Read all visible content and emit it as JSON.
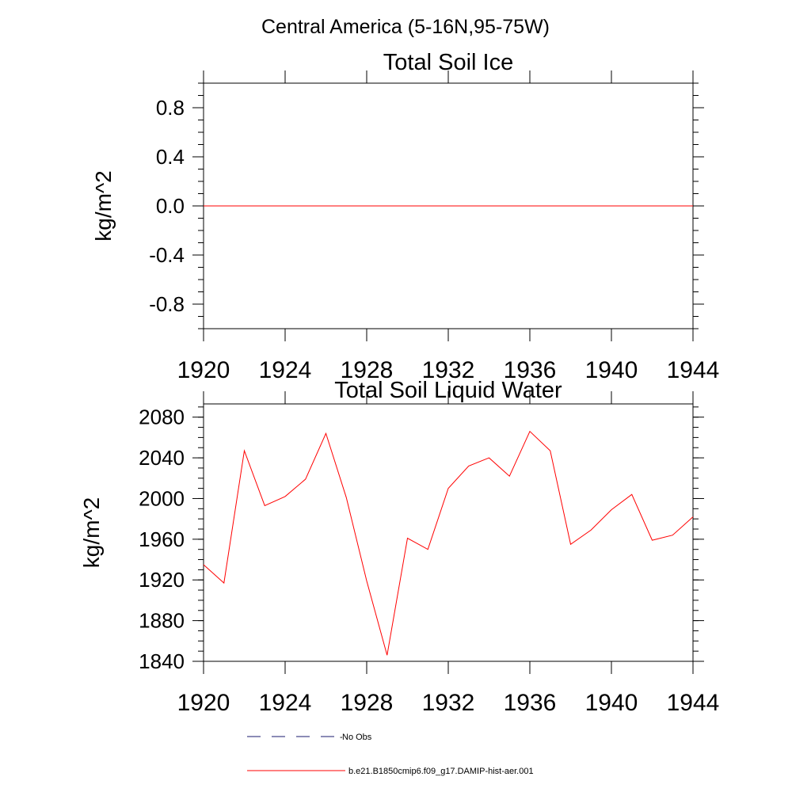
{
  "figure": {
    "title": "Central America (5-16N,95-75W)"
  },
  "chart_data": [
    {
      "type": "line",
      "title": "Total Soil Ice",
      "ylabel": "kg/m^2",
      "xlabel": "",
      "xlim": [
        1920,
        1944
      ],
      "ylim": [
        -1.0,
        1.0
      ],
      "x_ticks": [
        "1920",
        "1924",
        "1928",
        "1932",
        "1936",
        "1940",
        "1944"
      ],
      "y_ticks": [
        "0.8",
        "0.4",
        "0.0",
        "-0.4",
        "-0.8"
      ],
      "x_tick_values": [
        1920,
        1924,
        1928,
        1932,
        1936,
        1940,
        1944
      ],
      "y_tick_values": [
        0.8,
        0.4,
        0.0,
        -0.4,
        -0.8
      ],
      "grid": false,
      "series": [
        {
          "name": "b.e21.B1850cmip6.f09_g17.DAMIP-hist-aer.001",
          "color": "#ff0000",
          "x": [
            1920,
            1921,
            1922,
            1923,
            1924,
            1925,
            1926,
            1927,
            1928,
            1929,
            1930,
            1931,
            1932,
            1933,
            1934,
            1935,
            1936,
            1937,
            1938,
            1939,
            1940,
            1941,
            1942,
            1943,
            1944
          ],
          "y": [
            0,
            0,
            0,
            0,
            0,
            0,
            0,
            0,
            0,
            0,
            0,
            0,
            0,
            0,
            0,
            0,
            0,
            0,
            0,
            0,
            0,
            0,
            0,
            0,
            0
          ]
        }
      ]
    },
    {
      "type": "line",
      "title": "Total Soil Liquid Water",
      "ylabel": "kg/m^2",
      "xlabel": "",
      "xlim": [
        1920,
        1944
      ],
      "ylim": [
        1840,
        2093
      ],
      "x_ticks": [
        "1920",
        "1924",
        "1928",
        "1932",
        "1936",
        "1940",
        "1944"
      ],
      "y_ticks": [
        "2080",
        "2040",
        "2000",
        "1960",
        "1920",
        "1880",
        "1840"
      ],
      "x_tick_values": [
        1920,
        1924,
        1928,
        1932,
        1936,
        1940,
        1944
      ],
      "y_tick_values": [
        2080,
        2040,
        2000,
        1960,
        1920,
        1880,
        1840
      ],
      "grid": false,
      "series": [
        {
          "name": "b.e21.B1850cmip6.f09_g17.DAMIP-hist-aer.001",
          "color": "#ff0000",
          "x": [
            1920,
            1921,
            1922,
            1923,
            1924,
            1925,
            1926,
            1927,
            1928,
            1929,
            1930,
            1931,
            1932,
            1933,
            1934,
            1935,
            1936,
            1937,
            1938,
            1939,
            1940,
            1941,
            1942,
            1943,
            1944
          ],
          "y": [
            1935,
            1917,
            2047,
            1993,
            2002,
            2019,
            2064,
            2001,
            1919,
            1846,
            1961,
            1950,
            2010,
            2032,
            2040,
            2022,
            2066,
            2047,
            1955,
            1969,
            1989,
            2004,
            1959,
            1964,
            1982
          ]
        }
      ]
    }
  ],
  "legend": {
    "placement": "bottom",
    "entries": [
      {
        "label": "No Obs",
        "style": "dashed",
        "color": "#1a1a6e"
      },
      {
        "label": "b.e21.B1850cmip6.f09_g17.DAMIP-hist-aer.001",
        "style": "solid",
        "color": "#ff0000"
      }
    ]
  }
}
